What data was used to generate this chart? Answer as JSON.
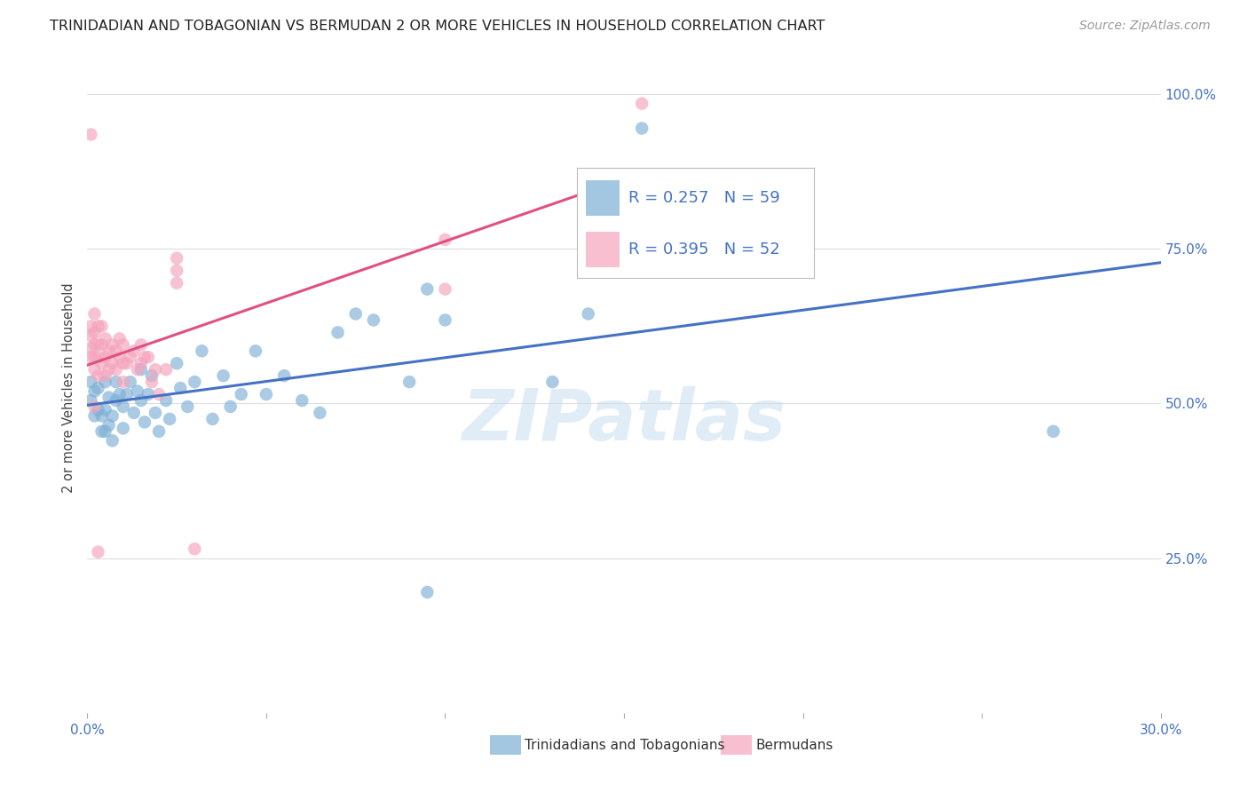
{
  "title": "TRINIDADIAN AND TOBAGONIAN VS BERMUDAN 2 OR MORE VEHICLES IN HOUSEHOLD CORRELATION CHART",
  "source": "Source: ZipAtlas.com",
  "ylabel": "2 or more Vehicles in Household",
  "xlim": [
    0.0,
    0.3
  ],
  "ylim": [
    0.0,
    1.05
  ],
  "blue_color": "#7db0d5",
  "pink_color": "#f4a4bc",
  "blue_line_color": "#4472c4",
  "pink_line_color": "#e05080",
  "legend_blue_label": "Trinidadians and Tobagonians",
  "legend_pink_label": "Bermudans",
  "r_blue": 0.257,
  "n_blue": 59,
  "r_pink": 0.395,
  "n_pink": 52,
  "background_color": "#ffffff",
  "grid_color": "#dddddd",
  "blue_pts_x": [
    0.001,
    0.001,
    0.002,
    0.002,
    0.003,
    0.003,
    0.004,
    0.004,
    0.005,
    0.005,
    0.005,
    0.006,
    0.006,
    0.007,
    0.007,
    0.008,
    0.008,
    0.009,
    0.01,
    0.01,
    0.011,
    0.012,
    0.013,
    0.014,
    0.015,
    0.015,
    0.016,
    0.017,
    0.018,
    0.02,
    0.022,
    0.023,
    0.025,
    0.026,
    0.028,
    0.03,
    0.032,
    0.035,
    0.038,
    0.04,
    0.043,
    0.047,
    0.05,
    0.055,
    0.06,
    0.065,
    0.07,
    0.075,
    0.08,
    0.09,
    0.095,
    0.1,
    0.13,
    0.14,
    0.155,
    0.155,
    0.27,
    0.095,
    0.019
  ],
  "blue_pts_y": [
    0.505,
    0.535,
    0.48,
    0.52,
    0.49,
    0.525,
    0.455,
    0.48,
    0.455,
    0.49,
    0.535,
    0.465,
    0.51,
    0.44,
    0.48,
    0.505,
    0.535,
    0.515,
    0.46,
    0.495,
    0.515,
    0.535,
    0.485,
    0.52,
    0.505,
    0.555,
    0.47,
    0.515,
    0.545,
    0.455,
    0.505,
    0.475,
    0.565,
    0.525,
    0.495,
    0.535,
    0.585,
    0.475,
    0.545,
    0.495,
    0.515,
    0.585,
    0.515,
    0.545,
    0.505,
    0.485,
    0.615,
    0.645,
    0.635,
    0.535,
    0.685,
    0.635,
    0.535,
    0.645,
    0.815,
    0.945,
    0.455,
    0.195,
    0.485
  ],
  "pink_pts_x": [
    0.001,
    0.001,
    0.001,
    0.001,
    0.002,
    0.002,
    0.002,
    0.002,
    0.002,
    0.003,
    0.003,
    0.003,
    0.003,
    0.004,
    0.004,
    0.004,
    0.005,
    0.005,
    0.005,
    0.006,
    0.006,
    0.007,
    0.007,
    0.008,
    0.008,
    0.009,
    0.009,
    0.01,
    0.01,
    0.01,
    0.011,
    0.012,
    0.013,
    0.014,
    0.015,
    0.015,
    0.016,
    0.017,
    0.018,
    0.019,
    0.02,
    0.022,
    0.025,
    0.025,
    0.025,
    0.03,
    0.1,
    0.1,
    0.155,
    0.001,
    0.002,
    0.003
  ],
  "pink_pts_y": [
    0.575,
    0.59,
    0.61,
    0.625,
    0.555,
    0.575,
    0.595,
    0.615,
    0.645,
    0.545,
    0.575,
    0.595,
    0.625,
    0.565,
    0.595,
    0.625,
    0.545,
    0.575,
    0.605,
    0.555,
    0.585,
    0.565,
    0.595,
    0.555,
    0.585,
    0.575,
    0.605,
    0.535,
    0.565,
    0.595,
    0.565,
    0.575,
    0.585,
    0.555,
    0.565,
    0.595,
    0.575,
    0.575,
    0.535,
    0.555,
    0.515,
    0.555,
    0.695,
    0.715,
    0.735,
    0.265,
    0.685,
    0.765,
    0.985,
    0.935,
    0.495,
    0.26
  ]
}
